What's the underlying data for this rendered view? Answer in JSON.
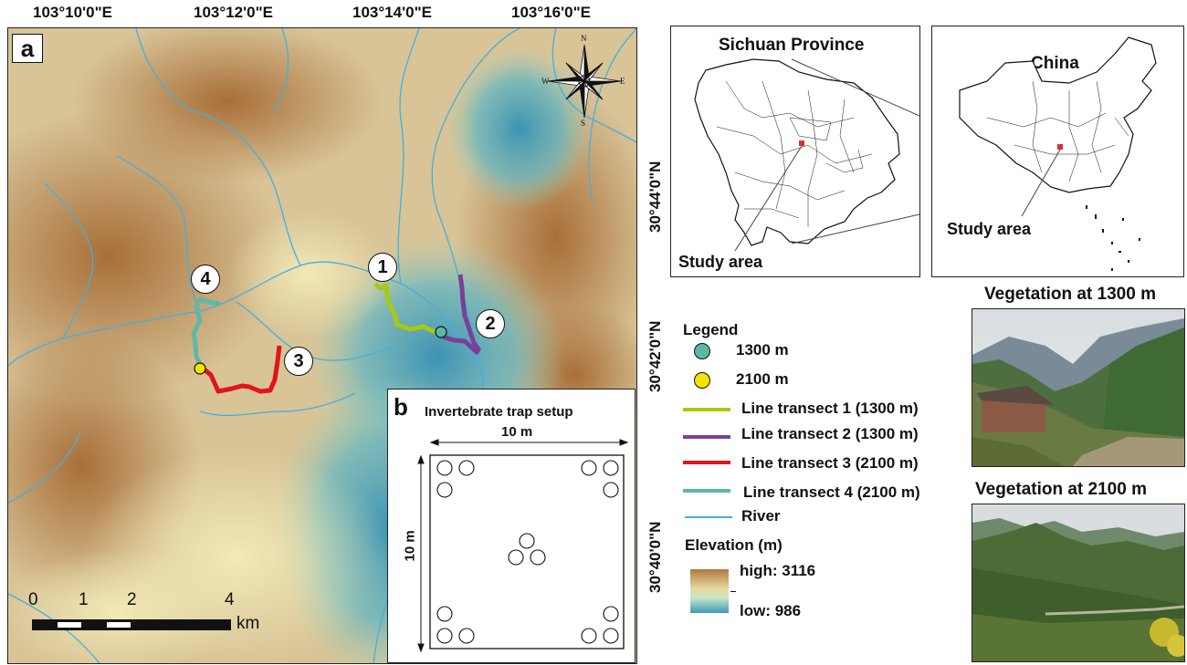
{
  "panel_a": {
    "letter": "a",
    "lon_labels": [
      "103°10'0\"E",
      "103°12'0\"E",
      "103°14'0\"E",
      "103°16'0\"E"
    ],
    "lat_labels": [
      "30°44'0\"N",
      "30°42'0\"N",
      "30°40'0\"N"
    ],
    "compass": {
      "n": "N",
      "s": "S",
      "e": "E",
      "w": "W"
    },
    "transect_markers": [
      "1",
      "2",
      "3",
      "4"
    ],
    "scale_bar": {
      "ticks": [
        "0",
        "1",
        "2",
        "4"
      ],
      "unit": "km"
    }
  },
  "panel_b": {
    "letter": "b",
    "title": "Invertebrate trap setup",
    "width_label": "10 m",
    "height_label": "10 m"
  },
  "sichuan_map": {
    "title": "Sichuan Province",
    "study_label": "Study area"
  },
  "china_map": {
    "title": "China",
    "study_label": "Study area"
  },
  "legend": {
    "title": "Legend",
    "items": [
      {
        "label": "1300 m",
        "color": "#5bb8a4",
        "kind": "dot"
      },
      {
        "label": "2100 m",
        "color": "#f2e300",
        "kind": "dot"
      },
      {
        "label": "Line transect 1 (1300 m)",
        "color": "#a8c812",
        "kind": "line"
      },
      {
        "label": "Line transect 2 (1300 m)",
        "color": "#7b3f98",
        "kind": "line"
      },
      {
        "label": "Line transect 3 (2100 m)",
        "color": "#e0141e",
        "kind": "line"
      },
      {
        "label": "Line transect 4 (2100 m)",
        "color": "#5fb8a6",
        "kind": "line"
      },
      {
        "label": "River",
        "color": "#45aee0",
        "kind": "thin"
      }
    ],
    "elevation": {
      "title": "Elevation (m)",
      "high": "high: 3116",
      "low": "low: 986",
      "high_color": "#b07840",
      "low_color": "#3f9ab8"
    }
  },
  "photos": {
    "top_title": "Vegetation at 1300 m",
    "bottom_title": "Vegetation at 2100 m"
  }
}
